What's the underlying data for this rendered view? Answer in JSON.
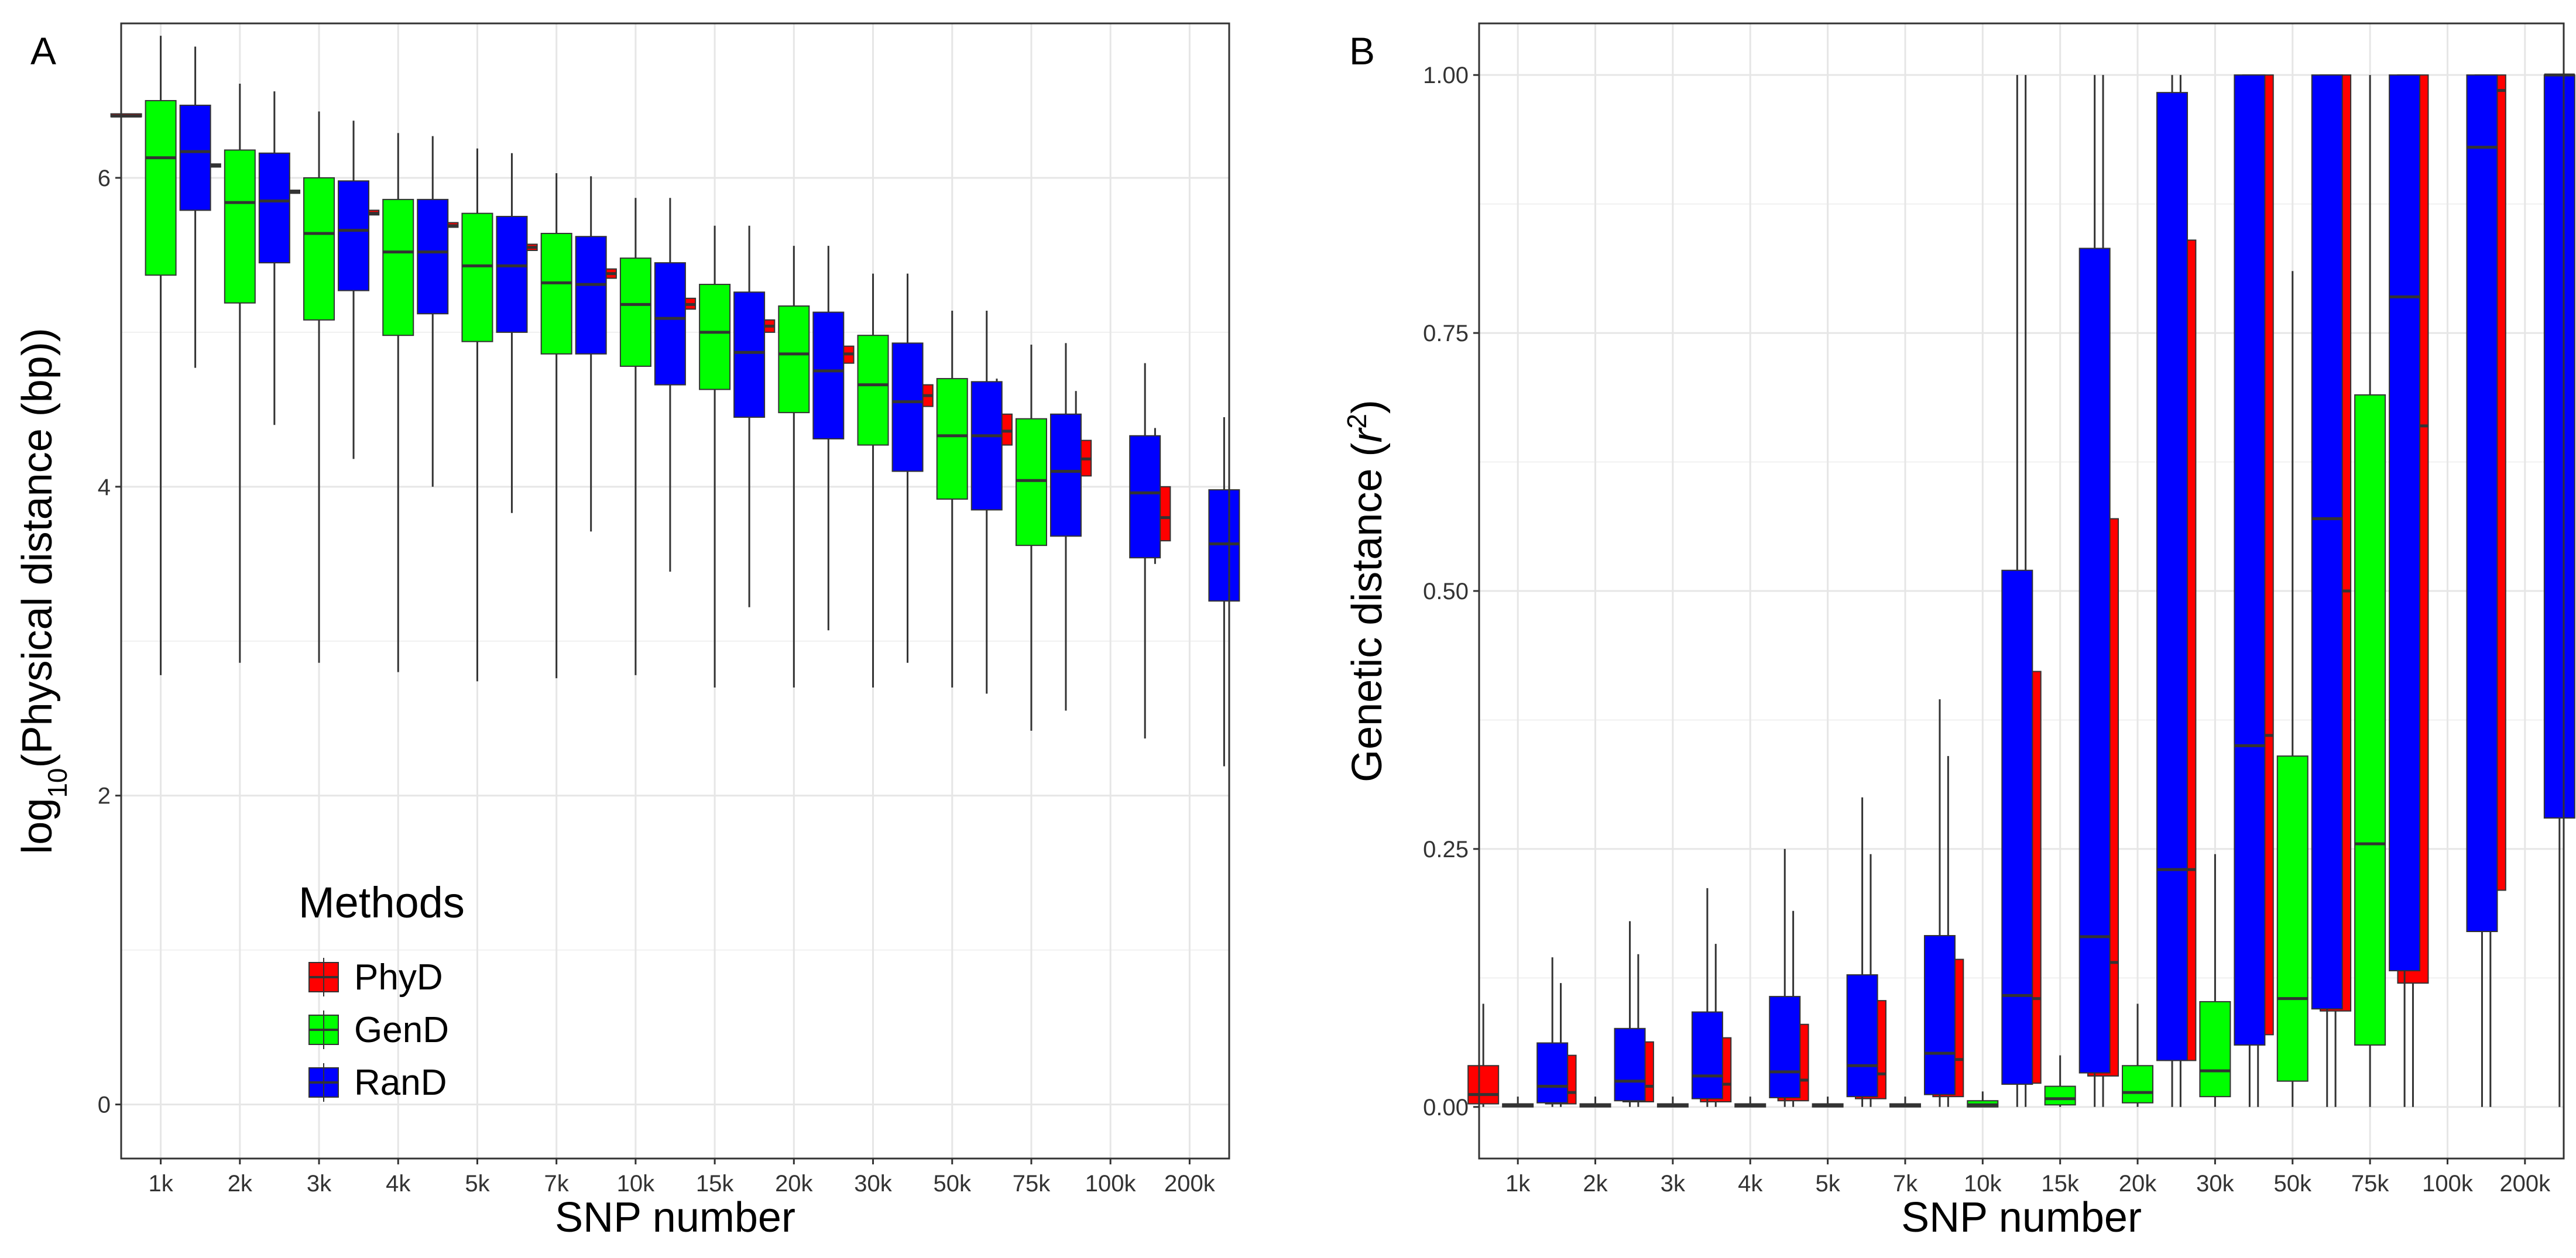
{
  "figure": {
    "legend": {
      "title": "Methods",
      "entries": [
        {
          "name": "PhyD",
          "color": "#ff0000"
        },
        {
          "name": "GenD",
          "color": "#00ff00"
        },
        {
          "name": "RanD",
          "color": "#0000ff"
        }
      ]
    }
  },
  "chart_data": [
    {
      "panel": "A",
      "type": "box",
      "xlabel": "SNP number",
      "ylabel_prefix": "log",
      "ylabel_sub": "10",
      "ylabel_rest": "(Physical distance (bp))",
      "categories": [
        "1k",
        "2k",
        "3k",
        "4k",
        "5k",
        "7k",
        "10k",
        "15k",
        "20k",
        "30k",
        "50k",
        "75k",
        "100k",
        "200k"
      ],
      "ylim": [
        -0.35,
        7.0
      ],
      "yticks": [
        0,
        2,
        4,
        6
      ],
      "ytick_labels": [
        "0",
        "2",
        "4",
        "6"
      ],
      "grid": true,
      "legend_position": "bottom-left",
      "series": [
        {
          "name": "PhyD",
          "color": "#ff0000",
          "boxes": [
            {
              "q1": 6.4,
              "median": 6.4,
              "q3": 6.41,
              "low": 6.4,
              "high": 6.41
            },
            {
              "q1": 6.07,
              "median": 6.08,
              "q3": 6.09,
              "low": 6.07,
              "high": 6.09
            },
            {
              "q1": 5.9,
              "median": 5.91,
              "q3": 5.92,
              "low": 5.9,
              "high": 5.92
            },
            {
              "q1": 5.76,
              "median": 5.77,
              "q3": 5.79,
              "low": 5.76,
              "high": 5.79
            },
            {
              "q1": 5.68,
              "median": 5.69,
              "q3": 5.71,
              "low": 5.68,
              "high": 5.71
            },
            {
              "q1": 5.53,
              "median": 5.55,
              "q3": 5.57,
              "low": 5.51,
              "high": 5.59
            },
            {
              "q1": 5.35,
              "median": 5.38,
              "q3": 5.41,
              "low": 5.33,
              "high": 5.44
            },
            {
              "q1": 5.15,
              "median": 5.18,
              "q3": 5.22,
              "low": 5.13,
              "high": 5.26
            },
            {
              "q1": 5.0,
              "median": 5.04,
              "q3": 5.08,
              "low": 4.98,
              "high": 5.12
            },
            {
              "q1": 4.8,
              "median": 4.86,
              "q3": 4.91,
              "low": 4.76,
              "high": 4.99
            },
            {
              "q1": 4.52,
              "median": 4.59,
              "q3": 4.66,
              "low": 4.46,
              "high": 4.82
            },
            {
              "q1": 4.27,
              "median": 4.36,
              "q3": 4.47,
              "low": 4.22,
              "high": 4.7
            },
            {
              "q1": 4.07,
              "median": 4.18,
              "q3": 4.3,
              "low": 4.05,
              "high": 4.62
            },
            {
              "q1": 3.65,
              "median": 3.8,
              "q3": 4.0,
              "low": 3.5,
              "high": 4.38
            }
          ]
        },
        {
          "name": "GenD",
          "color": "#00ff00",
          "boxes": [
            {
              "q1": 5.37,
              "median": 6.13,
              "q3": 6.5,
              "low": 2.78,
              "high": 6.92
            },
            {
              "q1": 5.19,
              "median": 5.84,
              "q3": 6.18,
              "low": 2.86,
              "high": 6.61
            },
            {
              "q1": 5.08,
              "median": 5.64,
              "q3": 6.0,
              "low": 2.86,
              "high": 6.43
            },
            {
              "q1": 4.98,
              "median": 5.52,
              "q3": 5.86,
              "low": 2.8,
              "high": 6.29
            },
            {
              "q1": 4.94,
              "median": 5.43,
              "q3": 5.77,
              "low": 2.74,
              "high": 6.19
            },
            {
              "q1": 4.86,
              "median": 5.32,
              "q3": 5.64,
              "low": 2.76,
              "high": 6.03
            },
            {
              "q1": 4.78,
              "median": 5.18,
              "q3": 5.48,
              "low": 2.78,
              "high": 5.87
            },
            {
              "q1": 4.63,
              "median": 5.0,
              "q3": 5.31,
              "low": 2.7,
              "high": 5.69
            },
            {
              "q1": 4.48,
              "median": 4.86,
              "q3": 5.17,
              "low": 2.7,
              "high": 5.56
            },
            {
              "q1": 4.27,
              "median": 4.66,
              "q3": 4.98,
              "low": 2.7,
              "high": 5.38
            },
            {
              "q1": 3.92,
              "median": 4.33,
              "q3": 4.7,
              "low": 2.7,
              "high": 5.14
            },
            {
              "q1": 3.62,
              "median": 4.04,
              "q3": 4.44,
              "low": 2.42,
              "high": 4.92
            },
            null,
            null
          ]
        },
        {
          "name": "RanD",
          "color": "#0000ff",
          "boxes": [
            {
              "q1": 5.79,
              "median": 6.17,
              "q3": 6.47,
              "low": 4.77,
              "high": 6.85
            },
            {
              "q1": 5.45,
              "median": 5.85,
              "q3": 6.16,
              "low": 4.4,
              "high": 6.56
            },
            {
              "q1": 5.27,
              "median": 5.66,
              "q3": 5.98,
              "low": 4.18,
              "high": 6.37
            },
            {
              "q1": 5.12,
              "median": 5.52,
              "q3": 5.86,
              "low": 4.0,
              "high": 6.27
            },
            {
              "q1": 5.0,
              "median": 5.43,
              "q3": 5.75,
              "low": 3.83,
              "high": 6.16
            },
            {
              "q1": 4.86,
              "median": 5.31,
              "q3": 5.62,
              "low": 3.71,
              "high": 6.01
            },
            {
              "q1": 4.66,
              "median": 5.09,
              "q3": 5.45,
              "low": 3.45,
              "high": 5.87
            },
            {
              "q1": 4.45,
              "median": 4.87,
              "q3": 5.26,
              "low": 3.22,
              "high": 5.69
            },
            {
              "q1": 4.31,
              "median": 4.75,
              "q3": 5.13,
              "low": 3.07,
              "high": 5.56
            },
            {
              "q1": 4.1,
              "median": 4.55,
              "q3": 4.93,
              "low": 2.86,
              "high": 5.38
            },
            {
              "q1": 3.85,
              "median": 4.33,
              "q3": 4.68,
              "low": 2.66,
              "high": 5.14
            },
            {
              "q1": 3.68,
              "median": 4.1,
              "q3": 4.47,
              "low": 2.55,
              "high": 4.93
            },
            {
              "q1": 3.54,
              "median": 3.96,
              "q3": 4.33,
              "low": 2.37,
              "high": 4.8
            },
            {
              "q1": 3.26,
              "median": 3.63,
              "q3": 3.98,
              "low": 2.19,
              "high": 4.45
            }
          ]
        }
      ]
    },
    {
      "panel": "B",
      "type": "box",
      "xlabel": "SNP number",
      "ylabel_prefix": "Genetic distance (",
      "ylabel_var": "r",
      "ylabel_sup": "2",
      "ylabel_suffix": ")",
      "categories": [
        "1k",
        "2k",
        "3k",
        "4k",
        "5k",
        "7k",
        "10k",
        "15k",
        "20k",
        "30k",
        "50k",
        "75k",
        "100k",
        "200k"
      ],
      "ylim": [
        -0.05,
        1.05
      ],
      "yticks": [
        0,
        0.25,
        0.5,
        0.75,
        1.0
      ],
      "ytick_labels": [
        "0.00",
        "0.25",
        "0.50",
        "0.75",
        "1.00"
      ],
      "grid": true,
      "series": [
        {
          "name": "PhyD",
          "color": "#ff0000",
          "boxes": [
            {
              "q1": 0.003,
              "median": 0.012,
              "q3": 0.04,
              "low": 0.0,
              "high": 0.1
            },
            {
              "q1": 0.003,
              "median": 0.014,
              "q3": 0.05,
              "low": 0.0,
              "high": 0.12
            },
            {
              "q1": 0.005,
              "median": 0.02,
              "q3": 0.063,
              "low": 0.0,
              "high": 0.148
            },
            {
              "q1": 0.005,
              "median": 0.022,
              "q3": 0.067,
              "low": 0.0,
              "high": 0.158
            },
            {
              "q1": 0.006,
              "median": 0.026,
              "q3": 0.08,
              "low": 0.0,
              "high": 0.19
            },
            {
              "q1": 0.008,
              "median": 0.032,
              "q3": 0.103,
              "low": 0.0,
              "high": 0.245
            },
            {
              "q1": 0.01,
              "median": 0.046,
              "q3": 0.143,
              "low": 0.0,
              "high": 0.34
            },
            {
              "q1": 0.023,
              "median": 0.105,
              "q3": 0.422,
              "low": 0.0,
              "high": 1.0
            },
            {
              "q1": 0.03,
              "median": 0.14,
              "q3": 0.57,
              "low": 0.0,
              "high": 1.0
            },
            {
              "q1": 0.045,
              "median": 0.23,
              "q3": 0.84,
              "low": 0.0,
              "high": 1.0
            },
            {
              "q1": 0.07,
              "median": 0.36,
              "q3": 1.0,
              "low": 0.0,
              "high": 1.0
            },
            {
              "q1": 0.093,
              "median": 0.5,
              "q3": 1.0,
              "low": 0.0,
              "high": 1.0
            },
            {
              "q1": 0.12,
              "median": 0.66,
              "q3": 1.0,
              "low": 0.0,
              "high": 1.0
            },
            {
              "q1": 0.21,
              "median": 0.985,
              "q3": 1.0,
              "low": 0.0,
              "high": 1.0
            }
          ]
        },
        {
          "name": "GenD",
          "color": "#00ff00",
          "boxes": [
            {
              "q1": 0.0,
              "median": 0.001,
              "q3": 0.003,
              "low": 0.0,
              "high": 0.01
            },
            {
              "q1": 0.0,
              "median": 0.001,
              "q3": 0.003,
              "low": 0.0,
              "high": 0.01
            },
            {
              "q1": 0.0,
              "median": 0.001,
              "q3": 0.003,
              "low": 0.0,
              "high": 0.01
            },
            {
              "q1": 0.0,
              "median": 0.001,
              "q3": 0.003,
              "low": 0.0,
              "high": 0.01
            },
            {
              "q1": 0.0,
              "median": 0.001,
              "q3": 0.003,
              "low": 0.0,
              "high": 0.01
            },
            {
              "q1": 0.0,
              "median": 0.001,
              "q3": 0.003,
              "low": 0.0,
              "high": 0.01
            },
            {
              "q1": 0.0,
              "median": 0.002,
              "q3": 0.006,
              "low": 0.0,
              "high": 0.015
            },
            {
              "q1": 0.002,
              "median": 0.008,
              "q3": 0.02,
              "low": 0.0,
              "high": 0.05
            },
            {
              "q1": 0.004,
              "median": 0.014,
              "q3": 0.04,
              "low": 0.0,
              "high": 0.1
            },
            {
              "q1": 0.01,
              "median": 0.035,
              "q3": 0.102,
              "low": 0.0,
              "high": 0.245
            },
            {
              "q1": 0.025,
              "median": 0.105,
              "q3": 0.34,
              "low": 0.0,
              "high": 0.81
            },
            {
              "q1": 0.06,
              "median": 0.255,
              "q3": 0.69,
              "low": 0.0,
              "high": 1.0
            },
            null,
            null
          ]
        },
        {
          "name": "RanD",
          "color": "#0000ff",
          "boxes": [
            {
              "q1": 0.004,
              "median": 0.02,
              "q3": 0.062,
              "low": 0.0,
              "high": 0.145
            },
            {
              "q1": 0.006,
              "median": 0.025,
              "q3": 0.076,
              "low": 0.0,
              "high": 0.18
            },
            {
              "q1": 0.008,
              "median": 0.03,
              "q3": 0.092,
              "low": 0.0,
              "high": 0.212
            },
            {
              "q1": 0.009,
              "median": 0.034,
              "q3": 0.107,
              "low": 0.0,
              "high": 0.25
            },
            {
              "q1": 0.01,
              "median": 0.04,
              "q3": 0.128,
              "low": 0.0,
              "high": 0.3
            },
            {
              "q1": 0.012,
              "median": 0.052,
              "q3": 0.166,
              "low": 0.0,
              "high": 0.395
            },
            {
              "q1": 0.022,
              "median": 0.108,
              "q3": 0.52,
              "low": 0.0,
              "high": 1.0
            },
            {
              "q1": 0.033,
              "median": 0.165,
              "q3": 0.832,
              "low": 0.0,
              "high": 1.0
            },
            {
              "q1": 0.045,
              "median": 0.23,
              "q3": 0.983,
              "low": 0.0,
              "high": 1.0
            },
            {
              "q1": 0.06,
              "median": 0.35,
              "q3": 1.0,
              "low": 0.0,
              "high": 1.0
            },
            {
              "q1": 0.095,
              "median": 0.57,
              "q3": 1.0,
              "low": 0.0,
              "high": 1.0
            },
            {
              "q1": 0.132,
              "median": 0.785,
              "q3": 1.0,
              "low": 0.0,
              "high": 1.0
            },
            {
              "q1": 0.17,
              "median": 0.93,
              "q3": 1.0,
              "low": 0.0,
              "high": 1.0
            },
            {
              "q1": 0.28,
              "median": 1.0,
              "q3": 1.0,
              "low": 0.0,
              "high": 1.0
            }
          ]
        }
      ]
    }
  ]
}
